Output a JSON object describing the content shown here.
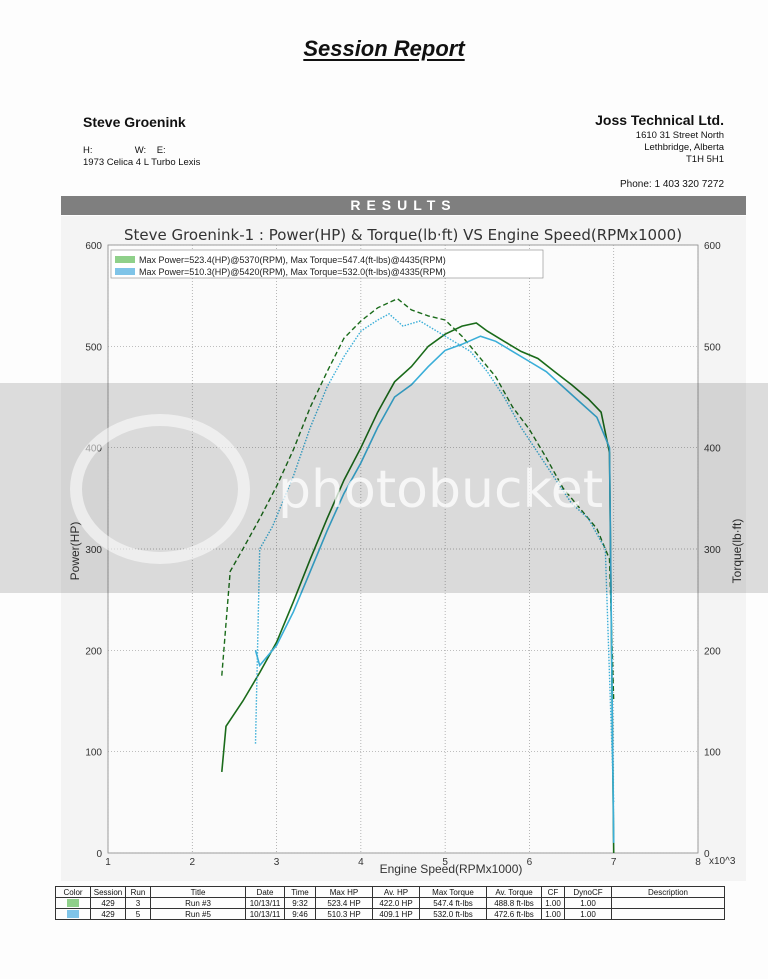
{
  "report": {
    "title": "Session Report",
    "client_name": "Steve Groenink",
    "client_phone_line": "H:                W:    E:",
    "client_vehicle": "1973 Celica 4 L Turbo Lexis",
    "company_name": "Joss Technical Ltd.",
    "company_address": [
      "1610 31 Street North",
      "Lethbridge, Alberta",
      "T1H 5H1"
    ],
    "company_phone": "Phone: 1 403 320 7272",
    "results_label": "RESULTS",
    "watermark": "photobucket"
  },
  "chart_data": {
    "type": "line",
    "title": "Steve Groenink-1 : Power(HP) & Torque(lb·ft) VS Engine Speed(RPMx1000)",
    "xlabel": "Engine Speed(RPMx1000)",
    "ylabel": "Power(HP)",
    "y2label": "Torque(lb·ft)",
    "xlim": [
      1,
      8
    ],
    "ylim": [
      0,
      600
    ],
    "y2lim": [
      0,
      600
    ],
    "x_ticks": [
      "1",
      "2",
      "3",
      "4",
      "5",
      "6",
      "7",
      "8"
    ],
    "x_multiplier": "x10^3",
    "y_ticks": [
      "0",
      "100",
      "200",
      "300",
      "400",
      "500",
      "600"
    ],
    "y2_ticks": [
      "0",
      "100",
      "200",
      "300",
      "400",
      "500",
      "600"
    ],
    "grid": true,
    "legend_position": "top-left",
    "legend": [
      {
        "text": "Max Power=523.4(HP)@5370(RPM), Max Torque=547.4(ft-lbs)@4435(RPM)",
        "color": "#8fd08a"
      },
      {
        "text": "Max Power=510.3(HP)@5420(RPM), Max Torque=532.0(ft-lbs)@4335(RPM)",
        "color": "#7fc4e8"
      }
    ],
    "series": [
      {
        "run": "Run #3",
        "measure": "power",
        "color": "#1a6b1a",
        "dash": "solid",
        "x": [
          2.35,
          2.4,
          2.6,
          2.8,
          3.0,
          3.2,
          3.4,
          3.6,
          3.8,
          4.0,
          4.2,
          4.4,
          4.6,
          4.8,
          5.0,
          5.2,
          5.37,
          5.5,
          5.7,
          5.9,
          6.1,
          6.3,
          6.5,
          6.7,
          6.85,
          6.95,
          7.0
        ],
        "y": [
          80,
          125,
          150,
          178,
          208,
          248,
          290,
          330,
          368,
          400,
          435,
          465,
          480,
          500,
          512,
          520,
          523,
          515,
          505,
          495,
          488,
          475,
          462,
          448,
          435,
          395,
          0
        ]
      },
      {
        "run": "Run #3",
        "measure": "torque",
        "color": "#1a6b1a",
        "dash": "dashed",
        "x": [
          2.35,
          2.45,
          2.6,
          2.8,
          3.0,
          3.2,
          3.4,
          3.6,
          3.8,
          4.0,
          4.2,
          4.435,
          4.6,
          4.8,
          5.0,
          5.2,
          5.4,
          5.6,
          5.8,
          6.0,
          6.2,
          6.4,
          6.6,
          6.8,
          6.95,
          7.0
        ],
        "y": [
          175,
          278,
          300,
          330,
          362,
          398,
          440,
          475,
          508,
          525,
          538,
          547,
          536,
          530,
          526,
          510,
          490,
          470,
          440,
          418,
          390,
          360,
          340,
          320,
          290,
          150
        ]
      },
      {
        "run": "Run #5",
        "measure": "power",
        "color": "#3aaed8",
        "dash": "solid",
        "x": [
          2.75,
          2.8,
          3.0,
          3.2,
          3.4,
          3.6,
          3.8,
          4.0,
          4.2,
          4.4,
          4.6,
          4.8,
          5.0,
          5.2,
          5.42,
          5.6,
          5.8,
          6.0,
          6.2,
          6.4,
          6.6,
          6.8,
          6.95,
          7.0
        ],
        "y": [
          200,
          185,
          205,
          238,
          278,
          318,
          355,
          385,
          420,
          450,
          462,
          480,
          496,
          502,
          510,
          505,
          495,
          485,
          475,
          460,
          445,
          430,
          400,
          10
        ]
      },
      {
        "run": "Run #5",
        "measure": "torque",
        "color": "#3aaed8",
        "dash": "dotted",
        "x": [
          2.75,
          2.8,
          2.95,
          3.2,
          3.4,
          3.6,
          3.8,
          4.0,
          4.2,
          4.335,
          4.5,
          4.7,
          4.9,
          5.1,
          5.3,
          5.5,
          5.7,
          5.9,
          6.1,
          6.3,
          6.5,
          6.7,
          6.9,
          7.0
        ],
        "y": [
          108,
          300,
          322,
          372,
          420,
          460,
          490,
          515,
          526,
          532,
          520,
          525,
          515,
          505,
          495,
          475,
          450,
          420,
          395,
          370,
          345,
          330,
          300,
          50
        ]
      }
    ]
  },
  "table": {
    "headers": [
      "Color",
      "Session",
      "Run",
      "Title",
      "Date",
      "Time",
      "Max HP",
      "Av. HP",
      "Max Torque",
      "Av. Torque",
      "CF",
      "DynoCF",
      "Description"
    ],
    "rows": [
      {
        "color": "#8fd08a",
        "cells": [
          "429",
          "3",
          "Run #3",
          "10/13/11",
          "9:32",
          "523.4 HP",
          "422.0 HP",
          "547.4 ft-lbs",
          "488.8 ft-lbs",
          "1.00",
          "1.00",
          ""
        ]
      },
      {
        "color": "#7fc4e8",
        "cells": [
          "429",
          "5",
          "Run #5",
          "10/13/11",
          "9:46",
          "510.3 HP",
          "409.1 HP",
          "532.0 ft-lbs",
          "472.6 ft-lbs",
          "1.00",
          "1.00",
          ""
        ]
      }
    ]
  }
}
